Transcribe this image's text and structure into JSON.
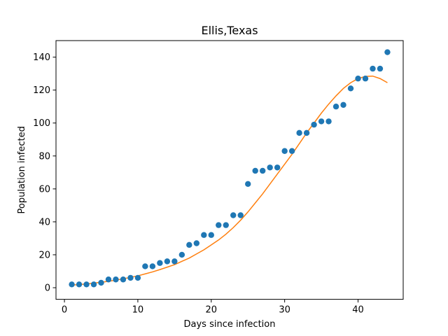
{
  "chart_data": {
    "type": "scatter",
    "title": "Ellis,Texas",
    "xlabel": "Days since infection",
    "ylabel": "Population infected",
    "xlim": [
      -1.15,
      46.15
    ],
    "ylim": [
      -7.05,
      150.05
    ],
    "xticks": [
      0,
      10,
      20,
      30,
      40
    ],
    "yticks": [
      0,
      20,
      40,
      60,
      80,
      100,
      120,
      140
    ],
    "grid": false,
    "legend": "none",
    "series": [
      {
        "kind": "scatter",
        "color": "#1f77b4",
        "x": [
          1,
          2,
          3,
          4,
          5,
          6,
          7,
          8,
          9,
          10,
          11,
          12,
          13,
          14,
          15,
          16,
          17,
          18,
          19,
          20,
          21,
          22,
          23,
          24,
          25,
          26,
          27,
          28,
          29,
          30,
          31,
          32,
          33,
          34,
          35,
          36,
          37,
          38,
          39,
          40,
          41,
          42,
          43,
          44
        ],
        "y": [
          2,
          2,
          2,
          2,
          3,
          5,
          5,
          5,
          6,
          6,
          13,
          13,
          15,
          16,
          16,
          20,
          26,
          27,
          32,
          32,
          38,
          38,
          44,
          44,
          63,
          71,
          71,
          73,
          73,
          83,
          83,
          94,
          94,
          99,
          101,
          101,
          110,
          111,
          121,
          127,
          127,
          133,
          133,
          143
        ]
      },
      {
        "kind": "line",
        "color": "#ff7f0e",
        "x": [
          1,
          2,
          3,
          4,
          5,
          6,
          7,
          8,
          9,
          10,
          11,
          12,
          13,
          14,
          15,
          16,
          17,
          18,
          19,
          20,
          21,
          22,
          23,
          24,
          25,
          26,
          27,
          28,
          29,
          30,
          31,
          32,
          33,
          34,
          35,
          36,
          37,
          38,
          39,
          40,
          41,
          42,
          43,
          44
        ],
        "y": [
          1.6,
          1.9,
          2.3,
          2.8,
          3.3,
          3.9,
          4.6,
          5.4,
          6.3,
          7.2,
          8.4,
          9.6,
          11,
          12.5,
          14,
          16,
          18,
          20.5,
          23,
          26,
          29,
          32.5,
          36.5,
          41,
          46,
          51.5,
          57,
          63,
          69,
          75,
          81,
          87.5,
          94,
          100,
          106,
          111.5,
          116.5,
          121,
          124.5,
          127,
          128.3,
          128.5,
          127,
          124.5
        ]
      }
    ]
  }
}
